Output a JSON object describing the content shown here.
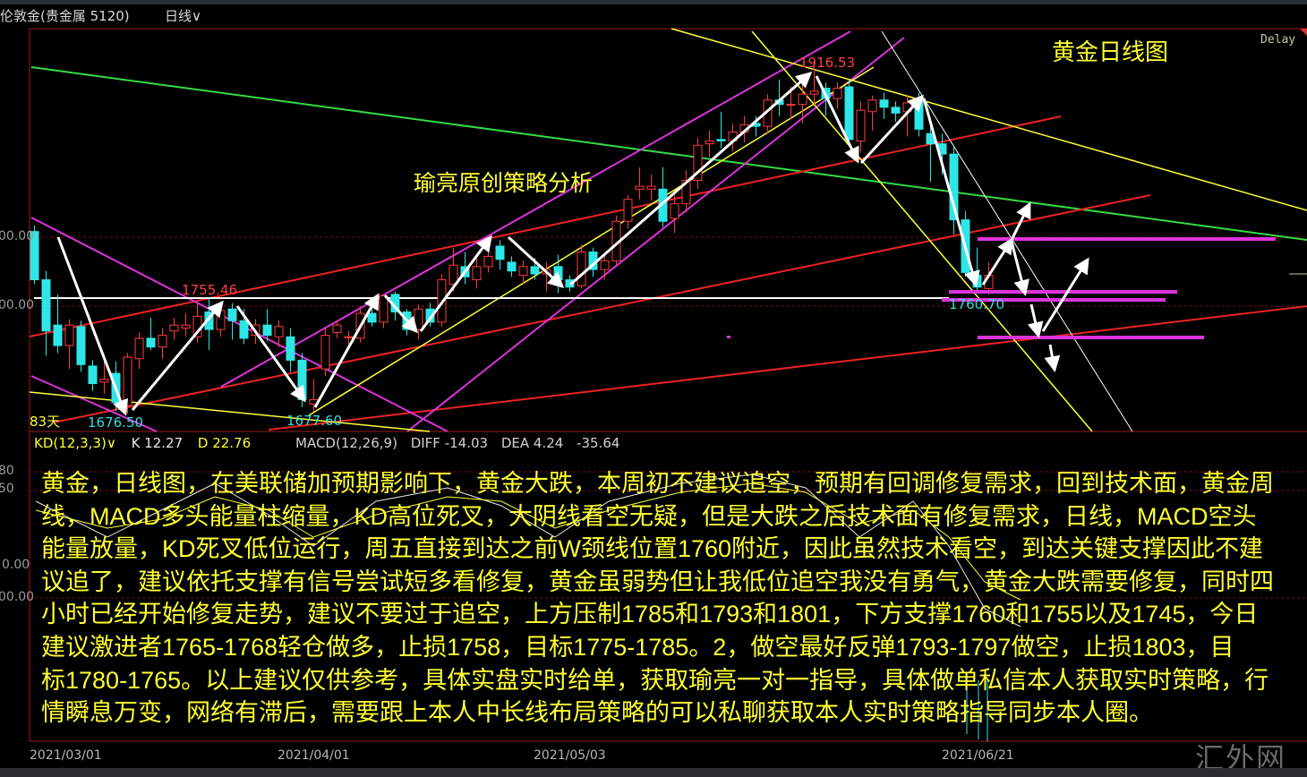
{
  "header": {
    "title": "伦敦金(贵金属 5120)",
    "period": "日线",
    "period_icon": "chevron-down-icon",
    "delay": "Delay"
  },
  "annotations": {
    "chart_title": "黄金日线图",
    "strategy_label": "瑜亮原创策略分析",
    "high_label": "1916.53",
    "mid_high_label": "1755.46",
    "low1_label": "1676.50",
    "low2_label": "1677.60",
    "recent_low_label": "1760.70",
    "days_label": "83天"
  },
  "axis": {
    "price_labels": [
      "00.00",
      "00.00"
    ],
    "kd_labels": [
      "80",
      "50"
    ],
    "macd_labels": [
      "0.00",
      "00.00"
    ],
    "date_labels": [
      "2021/03/01",
      "2021/04/01",
      "2021/05/03",
      "2021/06/21"
    ]
  },
  "indicators": {
    "kd_name": "KD(12,3,3)",
    "kd_k": "K 12.27",
    "kd_d": "D 22.76",
    "macd_name": "MACD(12,26,9)",
    "macd_diff": "DIFF -14.03",
    "macd_dea": "DEA 4.24",
    "macd_value": "-35.64"
  },
  "paragraph": [
    "黄金，日线图，在美联储加预期影响下，黄金大跌，本周初不建议追空，预期有回调修复需求，回到技术面，黄金周",
    "线，MACD多头能量柱缩量，KD高位死叉，大阴线看空无疑，但是大跌之后技术面有修复需求，日线，MACD空头",
    "能量放量，KD死叉低位运行，周五直接到达之前W颈线位置1760附近，因此虽然技术看空，到达关键支撑因此不建",
    "议追了，建议依托支撑有信号尝试短多看修复，黄金虽弱势但让我低位追空我没有勇气，黄金大跌需要修复，同时四",
    "小时已经开始修复走势，建议不要过于追空，上方压制1785和1793和1801，下方支撑1760和1755以及1745，今日",
    "建议激进者1765-1768轻仓做多，止损1758，目标1775-1785。2，做空最好反弹1793-1797做空，止损1803，目",
    "标1780-1765。以上建议仅供参考，具体实盘实时给单，获取瑜亮一对一指导，具体做单私信本人获取实时策略，行",
    "情瞬息万变，网络有滞后，需要跟上本人中长线布局策略的可以私聊获取本人实时策略指导同步本人圈。"
  ],
  "watermark": "汇外网",
  "colors": {
    "up": "#ff3c3c",
    "down": "#2ee6e6",
    "text_yellow": "#ffff33",
    "axis_red": "#a01818"
  },
  "chart_data": {
    "type": "candlestick",
    "ohlc_order": [
      "open",
      "high",
      "low",
      "close"
    ],
    "candles": [
      [
        1801,
        1805,
        1765,
        1768
      ],
      [
        1768,
        1774,
        1716,
        1733
      ],
      [
        1737,
        1758,
        1718,
        1723
      ],
      [
        1723,
        1741,
        1707,
        1737
      ],
      [
        1736,
        1740,
        1705,
        1710
      ],
      [
        1709,
        1713,
        1692,
        1697
      ],
      [
        1698,
        1715,
        1690,
        1700
      ],
      [
        1704,
        1712,
        1678,
        1684
      ],
      [
        1682,
        1718,
        1676.5,
        1715
      ],
      [
        1714,
        1732,
        1707,
        1728
      ],
      [
        1728,
        1742,
        1720,
        1722
      ],
      [
        1722,
        1735,
        1714,
        1730
      ],
      [
        1733,
        1742,
        1727,
        1737
      ],
      [
        1735,
        1745,
        1729,
        1737
      ],
      [
        1729,
        1752,
        1725,
        1743
      ],
      [
        1746,
        1755.46,
        1720,
        1734
      ],
      [
        1734,
        1750,
        1729,
        1747
      ],
      [
        1748,
        1752,
        1727,
        1740
      ],
      [
        1740,
        1748,
        1724,
        1728
      ],
      [
        1730,
        1741,
        1724,
        1737
      ],
      [
        1737,
        1748,
        1726,
        1730
      ],
      [
        1729,
        1740,
        1722,
        1736
      ],
      [
        1729,
        1735,
        1705,
        1713
      ],
      [
        1713,
        1718,
        1681,
        1686
      ],
      [
        1683,
        1700,
        1677.6,
        1686
      ],
      [
        1707,
        1735,
        1702,
        1730
      ],
      [
        1732,
        1740,
        1728,
        1737
      ],
      [
        1729,
        1733,
        1722,
        1729
      ],
      [
        1728,
        1750,
        1725,
        1745
      ],
      [
        1745,
        1752,
        1736,
        1739
      ],
      [
        1739,
        1758,
        1735,
        1757
      ],
      [
        1758,
        1760,
        1740,
        1746
      ],
      [
        1746,
        1748,
        1730,
        1734
      ],
      [
        1734,
        1751,
        1727,
        1748
      ],
      [
        1748,
        1752,
        1736,
        1739
      ],
      [
        1739,
        1772,
        1736,
        1768
      ],
      [
        1765,
        1790,
        1760,
        1778
      ],
      [
        1777,
        1787,
        1765,
        1770
      ],
      [
        1768,
        1784,
        1762,
        1777
      ],
      [
        1777,
        1790,
        1773,
        1784
      ],
      [
        1791,
        1795,
        1775,
        1782
      ],
      [
        1780,
        1784,
        1770,
        1774
      ],
      [
        1771,
        1781,
        1765,
        1777
      ],
      [
        1777,
        1783,
        1768,
        1772
      ],
      [
        1772,
        1780,
        1760,
        1775
      ],
      [
        1777,
        1785,
        1759,
        1768
      ],
      [
        1768,
        1771,
        1760,
        1763
      ],
      [
        1764,
        1792,
        1762,
        1787
      ],
      [
        1787,
        1790,
        1770,
        1775
      ],
      [
        1775,
        1786,
        1768,
        1781
      ],
      [
        1781,
        1812,
        1778,
        1808
      ],
      [
        1808,
        1826,
        1803,
        1823
      ],
      [
        1830,
        1845,
        1823,
        1832
      ],
      [
        1830,
        1840,
        1822,
        1832
      ],
      [
        1830,
        1845,
        1804,
        1808
      ],
      [
        1810,
        1826,
        1800,
        1820
      ],
      [
        1820,
        1843,
        1814,
        1836
      ],
      [
        1836,
        1865,
        1830,
        1860
      ],
      [
        1861,
        1870,
        1852,
        1863
      ],
      [
        1864,
        1883,
        1858,
        1863
      ],
      [
        1863,
        1875,
        1856,
        1869
      ],
      [
        1869,
        1880,
        1862,
        1874
      ],
      [
        1875,
        1880,
        1866,
        1873
      ],
      [
        1873,
        1895,
        1868,
        1891
      ],
      [
        1891,
        1905,
        1880,
        1888
      ],
      [
        1888,
        1900,
        1878,
        1888
      ],
      [
        1888,
        1903,
        1875,
        1895
      ],
      [
        1895,
        1916.53,
        1888,
        1897
      ],
      [
        1899,
        1903,
        1880,
        1892
      ],
      [
        1892,
        1903,
        1885,
        1899
      ],
      [
        1900,
        1905,
        1860,
        1864
      ],
      [
        1863,
        1890,
        1855,
        1884
      ],
      [
        1883,
        1894,
        1870,
        1891
      ],
      [
        1891,
        1896,
        1878,
        1886
      ],
      [
        1886,
        1890,
        1876,
        1882
      ],
      [
        1883,
        1894,
        1866,
        1889
      ],
      [
        1891,
        1896,
        1866,
        1871
      ],
      [
        1868,
        1875,
        1835,
        1861
      ],
      [
        1861,
        1868,
        1840,
        1854
      ],
      [
        1854,
        1860,
        1799,
        1809
      ],
      [
        1809,
        1815,
        1770,
        1773
      ],
      [
        1771,
        1790,
        1760.7,
        1763
      ],
      [
        1762,
        1780,
        1758,
        1771
      ]
    ],
    "x_tick_labels": [
      "2021/03/01",
      "2021/04/01",
      "2021/05/03",
      "2021/06/21"
    ],
    "y_range": [
      1665,
      1925
    ],
    "grid": "dashed horizontal",
    "marked_prices": [
      1916.53,
      1755.46,
      1676.5,
      1677.6,
      1760.7
    ]
  }
}
